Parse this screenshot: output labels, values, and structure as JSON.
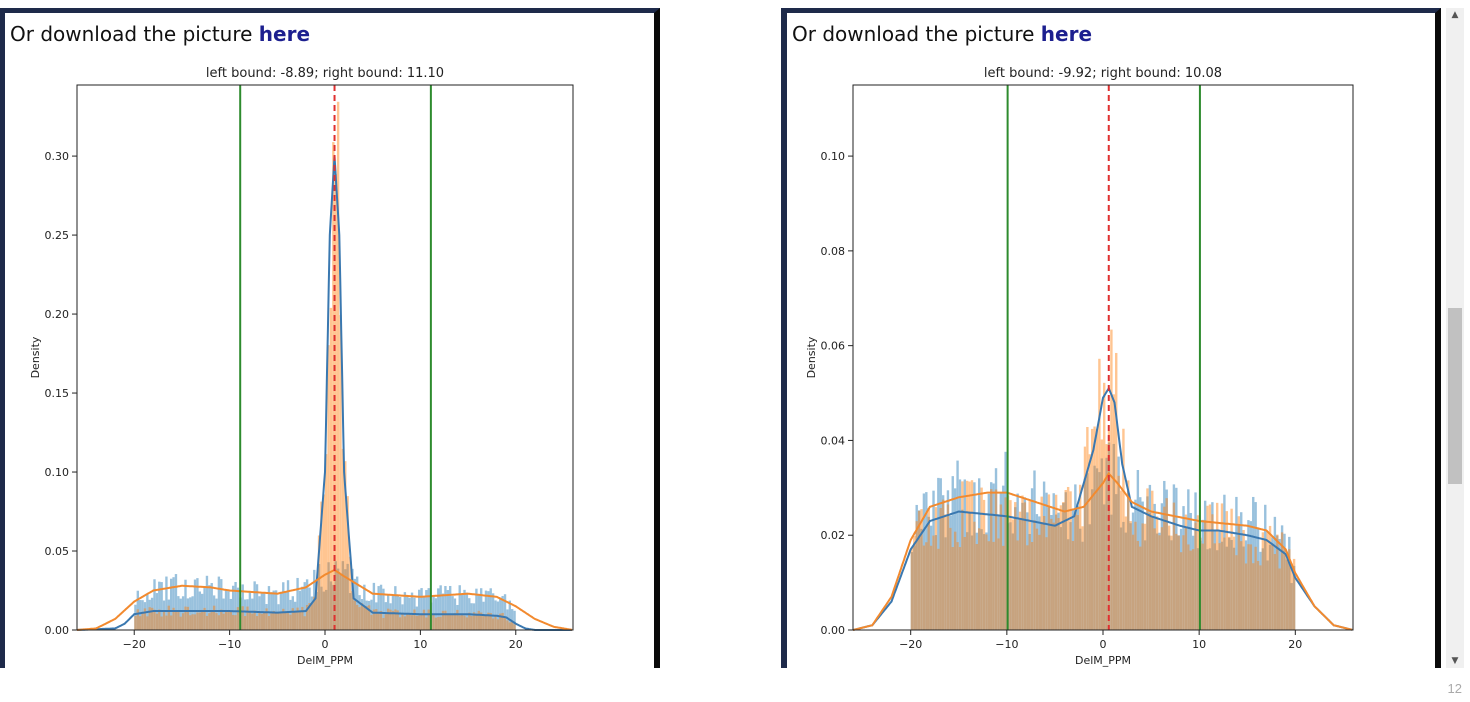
{
  "panels": [
    {
      "download_prefix": "Or download the picture ",
      "download_link": "here"
    },
    {
      "download_prefix": "Or download the picture ",
      "download_link": "here"
    }
  ],
  "page_number": "12",
  "colors": {
    "hist_blue": "#1f77b4",
    "hist_orange": "#ff7f0e",
    "kde_blue": "#3a78b0",
    "kde_orange": "#f28a2f",
    "bound_green": "#2e8b2e",
    "center_red": "#e03030"
  },
  "chart_data": [
    {
      "type": "area",
      "title": "left bound: -8.89; right bound: 11.10",
      "xlabel": "DelM_PPM",
      "ylabel": "Density",
      "xlim": [
        -26,
        26
      ],
      "ylim": [
        0,
        0.345
      ],
      "xticks": [
        -20,
        -10,
        0,
        10,
        20
      ],
      "xtick_labels": [
        "−20",
        "−10",
        "0",
        "10",
        "20"
      ],
      "yticks": [
        0.0,
        0.05,
        0.1,
        0.15,
        0.2,
        0.25,
        0.3
      ],
      "ytick_labels": [
        "0.00",
        "0.05",
        "0.10",
        "0.15",
        "0.20",
        "0.25",
        "0.30"
      ],
      "vlines": [
        {
          "x": -8.89,
          "style": "solid",
          "color": "green"
        },
        {
          "x": 11.1,
          "style": "solid",
          "color": "green"
        },
        {
          "x": 1.0,
          "style": "dashed",
          "color": "red"
        }
      ],
      "series": [
        {
          "kde_x": [
            -26,
            -22,
            -21,
            -20,
            -18,
            -15,
            -10,
            -5,
            -2,
            -1,
            0,
            0.5,
            1,
            1.5,
            2,
            3,
            5,
            10,
            15,
            18,
            19,
            20,
            21,
            22,
            26
          ],
          "kde_y": [
            0,
            0.001,
            0.004,
            0.01,
            0.012,
            0.012,
            0.012,
            0.011,
            0.012,
            0.02,
            0.1,
            0.25,
            0.3,
            0.25,
            0.1,
            0.02,
            0.011,
            0.01,
            0.01,
            0.009,
            0.008,
            0.004,
            0.001,
            0,
            0
          ]
        },
        {
          "kde_x": [
            -26,
            -24,
            -22,
            -20,
            -18,
            -15,
            -12,
            -10,
            -5,
            -2,
            0,
            1,
            2,
            5,
            10,
            15,
            18,
            20,
            22,
            24,
            26
          ],
          "kde_y": [
            0,
            0.001,
            0.007,
            0.018,
            0.025,
            0.028,
            0.027,
            0.025,
            0.023,
            0.027,
            0.035,
            0.038,
            0.034,
            0.023,
            0.021,
            0.023,
            0.021,
            0.015,
            0.007,
            0.002,
            0
          ]
        }
      ]
    },
    {
      "type": "area",
      "title": "left bound: -9.92; right bound: 10.08",
      "xlabel": "DelM_PPM",
      "ylabel": "Density",
      "xlim": [
        -26,
        26
      ],
      "ylim": [
        0,
        0.115
      ],
      "xticks": [
        -20,
        -10,
        0,
        10,
        20
      ],
      "xtick_labels": [
        "−20",
        "−10",
        "0",
        "10",
        "20"
      ],
      "yticks": [
        0.0,
        0.02,
        0.04,
        0.06,
        0.08,
        0.1
      ],
      "ytick_labels": [
        "0.00",
        "0.02",
        "0.04",
        "0.06",
        "0.08",
        "0.10"
      ],
      "vlines": [
        {
          "x": -9.92,
          "style": "solid",
          "color": "green"
        },
        {
          "x": 10.08,
          "style": "solid",
          "color": "green"
        },
        {
          "x": 0.6,
          "style": "dashed",
          "color": "red"
        }
      ],
      "series": [
        {
          "kde_x": [
            -26,
            -24,
            -22,
            -20,
            -18,
            -15,
            -10,
            -5,
            -3,
            -1,
            0,
            0.6,
            1.2,
            2,
            3,
            5,
            8,
            10,
            12,
            15,
            17,
            19,
            20,
            22,
            24,
            26
          ],
          "kde_y": [
            0,
            0.001,
            0.006,
            0.017,
            0.023,
            0.025,
            0.024,
            0.022,
            0.024,
            0.038,
            0.049,
            0.051,
            0.048,
            0.035,
            0.026,
            0.024,
            0.022,
            0.021,
            0.021,
            0.02,
            0.019,
            0.016,
            0.011,
            0.005,
            0.001,
            0
          ]
        },
        {
          "kde_x": [
            -26,
            -24,
            -22,
            -20,
            -18,
            -15,
            -12,
            -10,
            -7,
            -4,
            -2,
            0,
            0.6,
            1.5,
            3,
            5,
            10,
            15,
            17,
            19,
            20,
            22,
            24,
            26
          ],
          "kde_y": [
            0,
            0.001,
            0.007,
            0.019,
            0.026,
            0.028,
            0.029,
            0.029,
            0.027,
            0.025,
            0.026,
            0.031,
            0.033,
            0.031,
            0.027,
            0.025,
            0.023,
            0.022,
            0.021,
            0.017,
            0.012,
            0.005,
            0.001,
            0
          ]
        }
      ]
    }
  ]
}
